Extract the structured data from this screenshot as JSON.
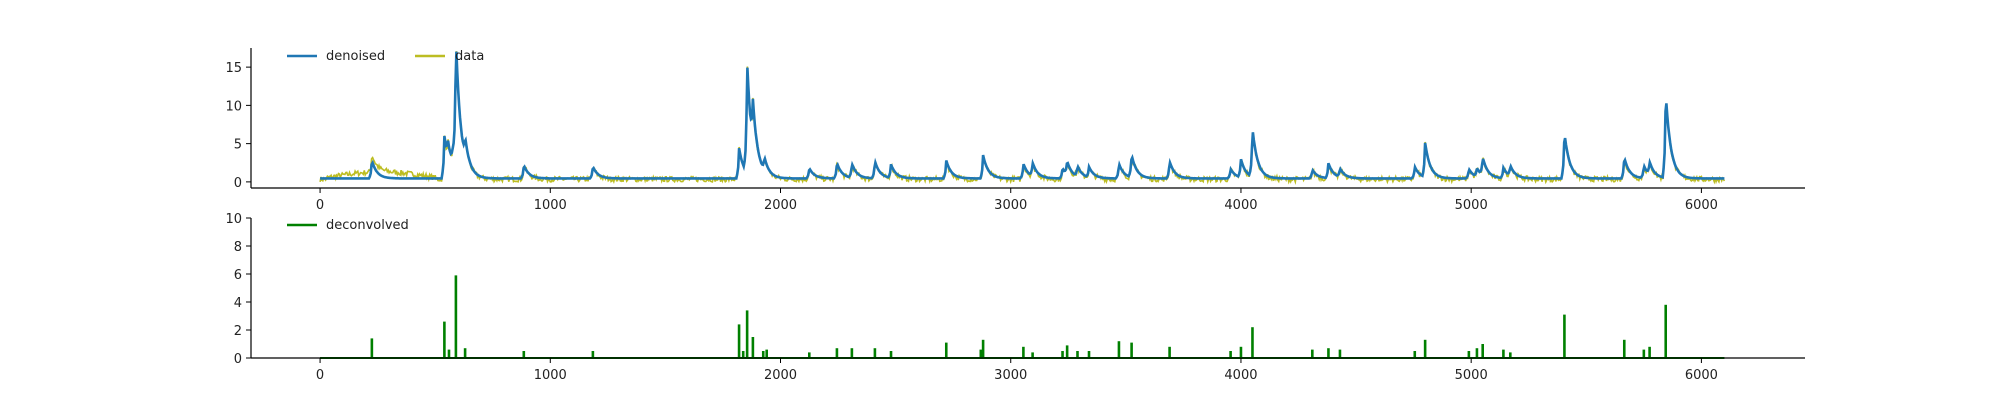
{
  "chart_data": [
    {
      "type": "line",
      "xlim": [
        -300,
        6450
      ],
      "ylim": [
        -0.8,
        17.5
      ],
      "xticks": [
        0,
        1000,
        2000,
        3000,
        4000,
        5000,
        6000
      ],
      "yticks": [
        0,
        5,
        10,
        15
      ],
      "baseline": 0.45,
      "x_end": 6100,
      "legend_position": "top-left",
      "series": [
        {
          "name": "denoised",
          "color": "#1f77b4",
          "peaks": [
            {
              "x": 225,
              "y": 2.8
            },
            {
              "x": 540,
              "y": 6.0
            },
            {
              "x": 555,
              "y": 2.8
            },
            {
              "x": 575,
              "y": 2.5
            },
            {
              "x": 590,
              "y": 16.5
            },
            {
              "x": 630,
              "y": 3.0
            },
            {
              "x": 885,
              "y": 2.2
            },
            {
              "x": 1185,
              "y": 2.0
            },
            {
              "x": 1820,
              "y": 4.4
            },
            {
              "x": 1855,
              "y": 14.8
            },
            {
              "x": 1880,
              "y": 6.0
            },
            {
              "x": 1930,
              "y": 2.2
            },
            {
              "x": 2125,
              "y": 1.8
            },
            {
              "x": 2245,
              "y": 2.5
            },
            {
              "x": 2310,
              "y": 2.3
            },
            {
              "x": 2410,
              "y": 2.7
            },
            {
              "x": 2480,
              "y": 2.2
            },
            {
              "x": 2720,
              "y": 2.8
            },
            {
              "x": 2880,
              "y": 3.5
            },
            {
              "x": 3055,
              "y": 2.4
            },
            {
              "x": 3095,
              "y": 2.2
            },
            {
              "x": 3225,
              "y": 1.8
            },
            {
              "x": 3245,
              "y": 2.2
            },
            {
              "x": 3290,
              "y": 1.8
            },
            {
              "x": 3340,
              "y": 1.8
            },
            {
              "x": 3470,
              "y": 2.4
            },
            {
              "x": 3525,
              "y": 3.4
            },
            {
              "x": 3690,
              "y": 2.7
            },
            {
              "x": 3955,
              "y": 1.7
            },
            {
              "x": 4000,
              "y": 2.8
            },
            {
              "x": 4050,
              "y": 6.8
            },
            {
              "x": 4310,
              "y": 1.6
            },
            {
              "x": 4380,
              "y": 2.4
            },
            {
              "x": 4430,
              "y": 1.6
            },
            {
              "x": 4755,
              "y": 2.0
            },
            {
              "x": 4800,
              "y": 4.9
            },
            {
              "x": 4990,
              "y": 1.7
            },
            {
              "x": 5025,
              "y": 1.6
            },
            {
              "x": 5050,
              "y": 2.8
            },
            {
              "x": 5140,
              "y": 1.8
            },
            {
              "x": 5170,
              "y": 1.8
            },
            {
              "x": 5405,
              "y": 6.5
            },
            {
              "x": 5665,
              "y": 3.2
            },
            {
              "x": 5750,
              "y": 2.1
            },
            {
              "x": 5775,
              "y": 2.1
            },
            {
              "x": 5845,
              "y": 11.6
            }
          ]
        },
        {
          "name": "data",
          "color": "#bcbd22",
          "noise_amplitude": 0.35,
          "extra_low_region": {
            "from": 30,
            "to": 500,
            "level": 1.2
          }
        }
      ]
    },
    {
      "type": "bar",
      "xlim": [
        -300,
        6450
      ],
      "ylim": [
        0,
        10
      ],
      "xticks": [
        0,
        1000,
        2000,
        3000,
        4000,
        5000,
        6000
      ],
      "yticks": [
        0,
        2,
        4,
        6,
        8,
        10
      ],
      "x_end": 6100,
      "legend_position": "top-left",
      "series": [
        {
          "name": "deconvolved",
          "color": "#008000",
          "spikes": [
            {
              "x": 225,
              "y": 1.4
            },
            {
              "x": 540,
              "y": 2.6
            },
            {
              "x": 560,
              "y": 0.6
            },
            {
              "x": 590,
              "y": 5.9
            },
            {
              "x": 630,
              "y": 0.7
            },
            {
              "x": 885,
              "y": 0.5
            },
            {
              "x": 1185,
              "y": 0.5
            },
            {
              "x": 1820,
              "y": 2.4
            },
            {
              "x": 1838,
              "y": 0.5
            },
            {
              "x": 1855,
              "y": 3.4
            },
            {
              "x": 1880,
              "y": 1.5
            },
            {
              "x": 1925,
              "y": 0.5
            },
            {
              "x": 1940,
              "y": 0.6
            },
            {
              "x": 2125,
              "y": 0.4
            },
            {
              "x": 2245,
              "y": 0.7
            },
            {
              "x": 2310,
              "y": 0.7
            },
            {
              "x": 2410,
              "y": 0.7
            },
            {
              "x": 2480,
              "y": 0.5
            },
            {
              "x": 2720,
              "y": 1.1
            },
            {
              "x": 2870,
              "y": 0.6
            },
            {
              "x": 2880,
              "y": 1.3
            },
            {
              "x": 3055,
              "y": 0.8
            },
            {
              "x": 3095,
              "y": 0.4
            },
            {
              "x": 3225,
              "y": 0.5
            },
            {
              "x": 3245,
              "y": 0.9
            },
            {
              "x": 3290,
              "y": 0.5
            },
            {
              "x": 3340,
              "y": 0.5
            },
            {
              "x": 3470,
              "y": 1.2
            },
            {
              "x": 3525,
              "y": 1.1
            },
            {
              "x": 3690,
              "y": 0.8
            },
            {
              "x": 3955,
              "y": 0.5
            },
            {
              "x": 4000,
              "y": 0.8
            },
            {
              "x": 4050,
              "y": 2.2
            },
            {
              "x": 4310,
              "y": 0.6
            },
            {
              "x": 4380,
              "y": 0.7
            },
            {
              "x": 4430,
              "y": 0.6
            },
            {
              "x": 4755,
              "y": 0.5
            },
            {
              "x": 4800,
              "y": 1.3
            },
            {
              "x": 4990,
              "y": 0.5
            },
            {
              "x": 5025,
              "y": 0.7
            },
            {
              "x": 5050,
              "y": 1.0
            },
            {
              "x": 5140,
              "y": 0.6
            },
            {
              "x": 5170,
              "y": 0.4
            },
            {
              "x": 5405,
              "y": 3.1
            },
            {
              "x": 5665,
              "y": 1.3
            },
            {
              "x": 5750,
              "y": 0.6
            },
            {
              "x": 5775,
              "y": 0.8
            },
            {
              "x": 5845,
              "y": 3.8
            }
          ]
        }
      ]
    }
  ]
}
